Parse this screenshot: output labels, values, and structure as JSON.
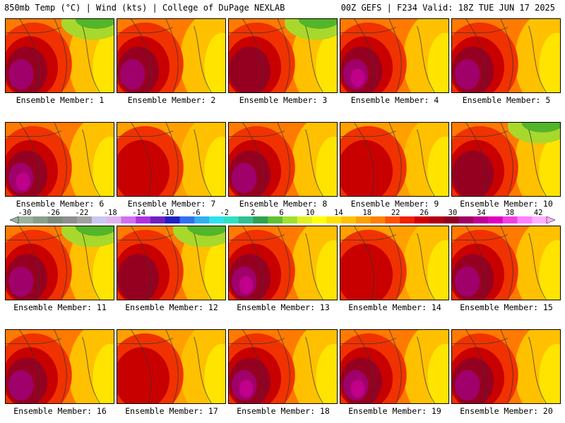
{
  "header": {
    "left": "850mb Temp (°C) | Wind (kts) | College of DuPage NEXLAB",
    "right": "00Z GEFS | F234 Valid: 18Z TUE JUN 17 2025"
  },
  "members": [
    {
      "label": "Ensemble Member: 1",
      "style": "hotwest_greenNE"
    },
    {
      "label": "Ensemble Member: 2",
      "style": "hot"
    },
    {
      "label": "Ensemble Member: 3",
      "style": "greenNE"
    },
    {
      "label": "Ensemble Member: 4",
      "style": "purple"
    },
    {
      "label": "Ensemble Member: 5",
      "style": "hot"
    },
    {
      "label": "Ensemble Member: 6",
      "style": "purple"
    },
    {
      "label": "Ensemble Member: 7",
      "style": "warm"
    },
    {
      "label": "Ensemble Member: 8",
      "style": "hot"
    },
    {
      "label": "Ensemble Member: 9",
      "style": "warm"
    },
    {
      "label": "Ensemble Member: 10",
      "style": "greenNE"
    },
    {
      "label": "Ensemble Member: 11",
      "style": "hotwest_greenNE"
    },
    {
      "label": "Ensemble Member: 12",
      "style": "greenNE"
    },
    {
      "label": "Ensemble Member: 13",
      "style": "purple"
    },
    {
      "label": "Ensemble Member: 14",
      "style": "warm"
    },
    {
      "label": "Ensemble Member: 15",
      "style": "hot"
    },
    {
      "label": "Ensemble Member: 16",
      "style": "hot"
    },
    {
      "label": "Ensemble Member: 17",
      "style": "warm"
    },
    {
      "label": "Ensemble Member: 18",
      "style": "purple"
    },
    {
      "label": "Ensemble Member: 19",
      "style": "purple"
    },
    {
      "label": "Ensemble Member: 20",
      "style": "hot"
    }
  ],
  "colorbar": {
    "labels": [
      "-30",
      "-26",
      "-22",
      "-18",
      "-14",
      "-10",
      "-6",
      "-2",
      "2",
      "6",
      "10",
      "14",
      "18",
      "22",
      "26",
      "30",
      "34",
      "38",
      "42"
    ],
    "colors": [
      "#9bb39b",
      "#8a9f8a",
      "#7b8b7b",
      "#8e8e8e",
      "#a0a0a0",
      "#c8c8f0",
      "#e0b4f0",
      "#d070f0",
      "#b030e0",
      "#7020c0",
      "#2020c0",
      "#3070f0",
      "#30b0f0",
      "#30e0f0",
      "#30e0c0",
      "#30c090",
      "#30a050",
      "#60c030",
      "#a0e030",
      "#e0f020",
      "#ffff00",
      "#ffe000",
      "#ffc000",
      "#ffa000",
      "#ff8000",
      "#ff5000",
      "#f02000",
      "#d00000",
      "#b00010",
      "#900020",
      "#a00060",
      "#c00090",
      "#e000c0",
      "#f040e0",
      "#ff80ff",
      "#ffb0ff"
    ]
  },
  "palette": {
    "green": "#52b52a",
    "lime": "#a8d82c",
    "yellow": "#ffe400",
    "lightorange": "#ffc000",
    "orange": "#ffa000",
    "darkorange": "#ff7a00",
    "red": "#f03200",
    "darkred": "#c80000",
    "maroon": "#960020",
    "purple": "#a0006a",
    "magenta": "#c0008a"
  }
}
